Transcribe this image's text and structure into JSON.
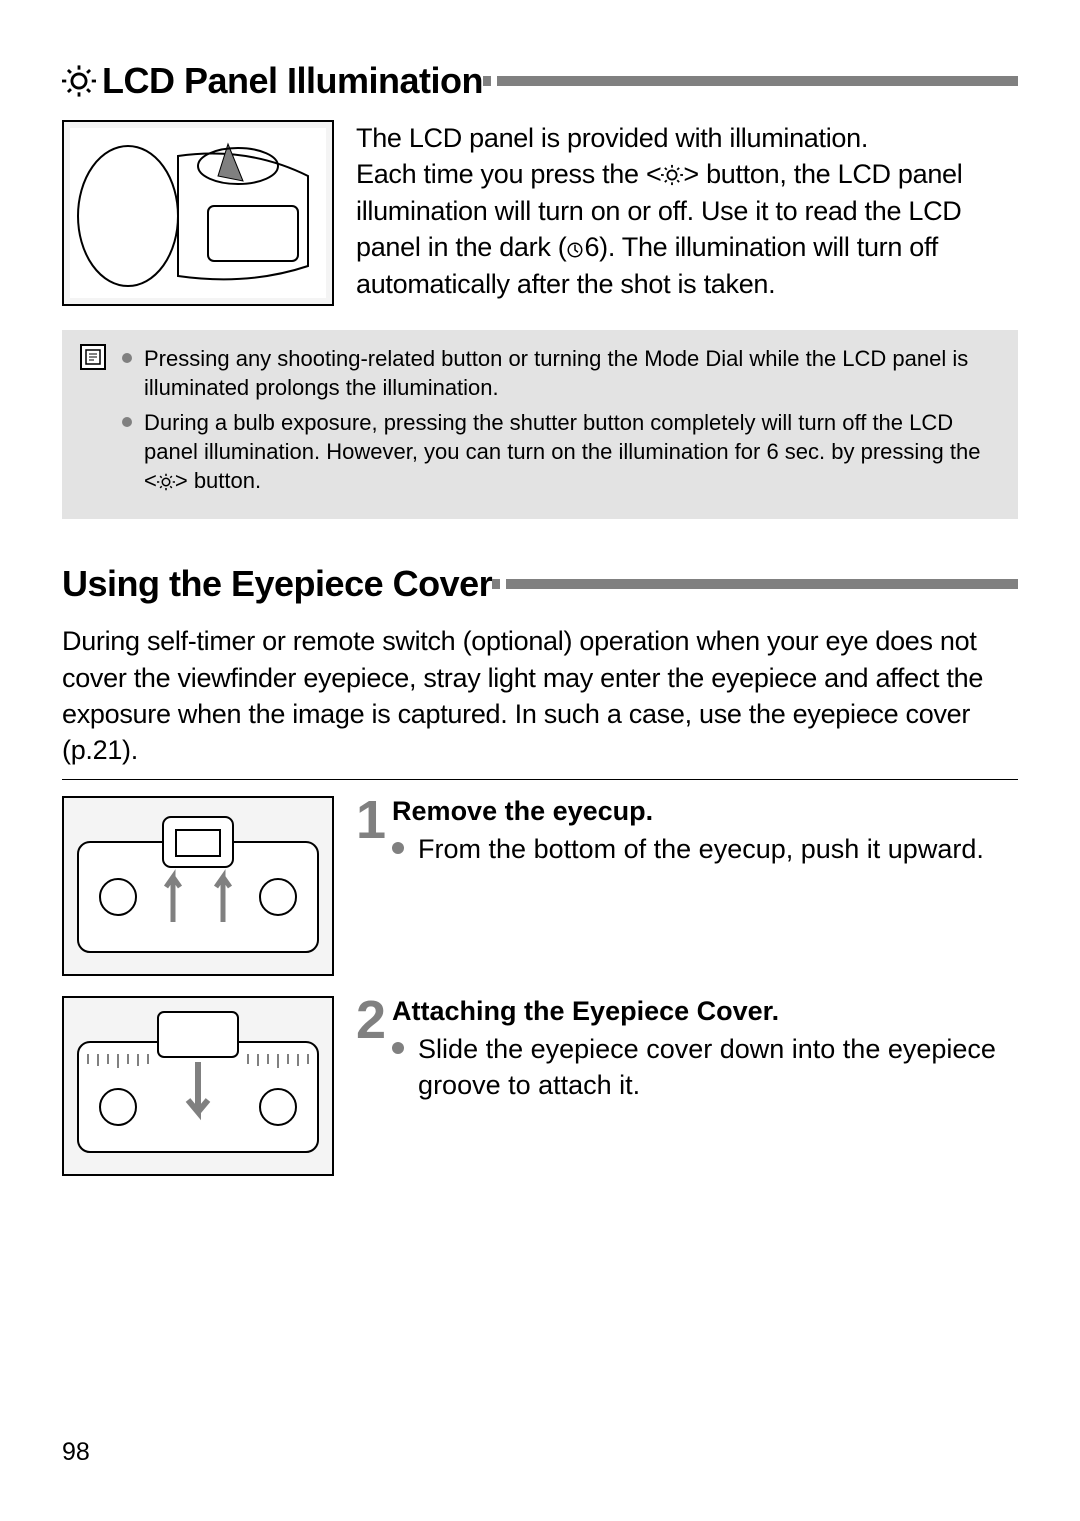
{
  "page_number": "98",
  "colors": {
    "rule_gray": "#808080",
    "note_bg": "#e3e3e3",
    "text": "#000000",
    "bullet": "#808080"
  },
  "section1": {
    "title": "LCD Panel Illumination",
    "paragraph_html": "The LCD panel is provided with illumination.<br>Each time you press the &lt;<svg class='inline-icon' width='22' height='22' viewBox='0 0 24 24'><circle cx='12' cy='12' r='5' fill='none' stroke='#000' stroke-width='2'/><line x1='12' y1='1' x2='12' y2='4' stroke='#000' stroke-width='2'/><line x1='12' y1='20' x2='12' y2='23' stroke='#000' stroke-width='2'/><line x1='3' y1='12' x2='0' y2='12' stroke='#000' stroke-width='2'/><line x1='24' y1='12' x2='21' y2='12' stroke='#000' stroke-width='2'/><line x1='4.2' y1='4.2' x2='6.3' y2='6.3' stroke='#000' stroke-width='2'/><line x1='17.7' y1='17.7' x2='19.8' y2='19.8' stroke='#000' stroke-width='2'/><line x1='4.2' y1='19.8' x2='6.3' y2='17.7' stroke='#000' stroke-width='2'/><line x1='17.7' y1='6.3' x2='19.8' y2='4.2' stroke='#000' stroke-width='2'/></svg>&gt; button, the LCD panel illumination will turn on or off. Use it to read the LCD panel in the dark (<svg class='inline-icon' width='18' height='18' viewBox='0 0 24 24'><circle cx='12' cy='12' r='9' fill='none' stroke='#000' stroke-width='2'/><path d='M12 5 L12 12 L16 15' fill='none' stroke='#000' stroke-width='2'/></svg>6). The illumination will turn off automatically after the shot is taken."
  },
  "notes": {
    "items_html": [
      "Pressing any shooting-related button or turning the Mode Dial while the LCD panel is illuminated prolongs the illumination.",
      "During a bulb exposure, pressing the shutter button completely will turn off the LCD panel illumination. However, you can turn on the illumination for 6 sec. by pressing the &lt;<svg class='inline-icon' width='18' height='18' viewBox='0 0 24 24'><circle cx='12' cy='12' r='5' fill='none' stroke='#000' stroke-width='2'/><line x1='12' y1='1' x2='12' y2='4' stroke='#000' stroke-width='2'/><line x1='12' y1='20' x2='12' y2='23' stroke='#000' stroke-width='2'/><line x1='3' y1='12' x2='0' y2='12' stroke='#000' stroke-width='2'/><line x1='24' y1='12' x2='21' y2='12' stroke='#000' stroke-width='2'/><line x1='4.2' y1='4.2' x2='6.3' y2='6.3' stroke='#000' stroke-width='2'/><line x1='17.7' y1='17.7' x2='19.8' y2='19.8' stroke='#000' stroke-width='2'/><line x1='4.2' y1='19.8' x2='6.3' y2='17.7' stroke='#000' stroke-width='2'/><line x1='17.7' y1='6.3' x2='19.8' y2='4.2' stroke='#000' stroke-width='2'/></svg>&gt; button."
    ]
  },
  "section2": {
    "title": "Using the Eyepiece Cover",
    "paragraph": "During self-timer or remote switch (optional) operation when your eye does not cover the viewfinder eyepiece, stray light may enter the eyepiece and affect the exposure when the image is captured. In such a case, use the eyepiece cover (p.21).",
    "steps": [
      {
        "number": "1",
        "heading": "Remove the eyecup.",
        "bullet": "From the bottom of the eyecup, push it upward."
      },
      {
        "number": "2",
        "heading": "Attaching the Eyepiece Cover.",
        "bullet": "Slide the eyepiece cover down into the eyepiece groove to attach it."
      }
    ]
  }
}
